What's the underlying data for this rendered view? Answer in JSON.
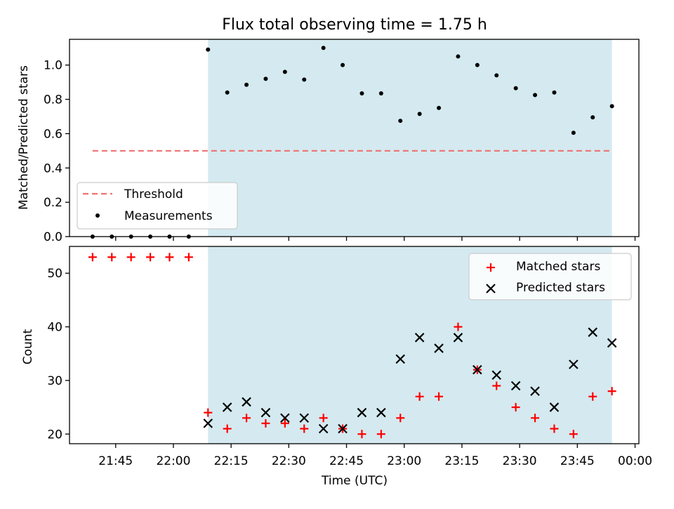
{
  "chart_data": [
    {
      "type": "scatter",
      "title": "Flux total observing time = 1.75 h",
      "xlabel": "",
      "ylabel": "Matched/Predicted stars",
      "ylim": [
        0,
        1.15
      ],
      "yticks": [
        "0.0",
        "0.2",
        "0.4",
        "0.6",
        "0.8",
        "1.0"
      ],
      "x_range": [
        "21:33",
        "00:01"
      ],
      "observing_window": {
        "start": "22:09",
        "end": "23:54",
        "color": "#d4eaf0"
      },
      "grid": false,
      "legend_placement": "lower-left",
      "threshold": {
        "name": "Threshold",
        "value": 0.5,
        "x_start": "21:39",
        "x_end": "23:54",
        "color": "#f07070",
        "style": "dashed"
      },
      "series": [
        {
          "name": "Measurements",
          "marker": "dot",
          "color": "#000000",
          "x": [
            "21:39",
            "21:44",
            "21:49",
            "21:54",
            "21:59",
            "22:04",
            "22:09",
            "22:14",
            "22:19",
            "22:24",
            "22:29",
            "22:34",
            "22:39",
            "22:44",
            "22:49",
            "22:54",
            "22:59",
            "23:04",
            "23:09",
            "23:14",
            "23:19",
            "23:24",
            "23:29",
            "23:34",
            "23:39",
            "23:44",
            "23:49",
            "23:54"
          ],
          "values": [
            0,
            0,
            0,
            0,
            0,
            0,
            1.09,
            0.84,
            0.885,
            0.92,
            0.96,
            0.915,
            1.1,
            1.0,
            0.835,
            0.835,
            0.675,
            0.715,
            0.75,
            1.05,
            1.0,
            0.94,
            0.865,
            0.825,
            0.84,
            0.605,
            0.695,
            0.76
          ]
        }
      ]
    },
    {
      "type": "scatter",
      "title": "",
      "xlabel": "Time (UTC)",
      "ylabel": "Count",
      "ylim": [
        18.2,
        55
      ],
      "yticks": [
        "20",
        "30",
        "40",
        "50"
      ],
      "xticks": [
        "21:45",
        "22:00",
        "22:15",
        "22:30",
        "22:45",
        "23:00",
        "23:15",
        "23:30",
        "23:45",
        "00:00"
      ],
      "x_range": [
        "21:33",
        "00:01"
      ],
      "observing_window": {
        "start": "22:09",
        "end": "23:54",
        "color": "#d4eaf0"
      },
      "grid": false,
      "legend_placement": "top-right",
      "series": [
        {
          "name": "Matched stars",
          "marker": "plus",
          "color": "#ff0000",
          "x": [
            "21:39",
            "21:44",
            "21:49",
            "21:54",
            "21:59",
            "22:04",
            "22:09",
            "22:14",
            "22:19",
            "22:24",
            "22:29",
            "22:34",
            "22:39",
            "22:44",
            "22:49",
            "22:54",
            "22:59",
            "23:04",
            "23:09",
            "23:14",
            "23:19",
            "23:24",
            "23:29",
            "23:34",
            "23:39",
            "23:44",
            "23:49",
            "23:54"
          ],
          "values": [
            53,
            53,
            53,
            53,
            53,
            53,
            24,
            21,
            23,
            22,
            22,
            21,
            23,
            21,
            20,
            20,
            23,
            27,
            27,
            40,
            32,
            29,
            25,
            23,
            21,
            20,
            27,
            28
          ]
        },
        {
          "name": "Predicted stars",
          "marker": "x",
          "color": "#000000",
          "x": [
            "22:09",
            "22:14",
            "22:19",
            "22:24",
            "22:29",
            "22:34",
            "22:39",
            "22:44",
            "22:49",
            "22:54",
            "22:59",
            "23:04",
            "23:09",
            "23:14",
            "23:19",
            "23:24",
            "23:29",
            "23:34",
            "23:39",
            "23:44",
            "23:49",
            "23:54"
          ],
          "values": [
            22,
            25,
            26,
            24,
            23,
            23,
            21,
            21,
            24,
            24,
            34,
            38,
            36,
            38,
            32,
            31,
            29,
            28,
            25,
            33,
            39,
            37
          ]
        }
      ]
    }
  ]
}
